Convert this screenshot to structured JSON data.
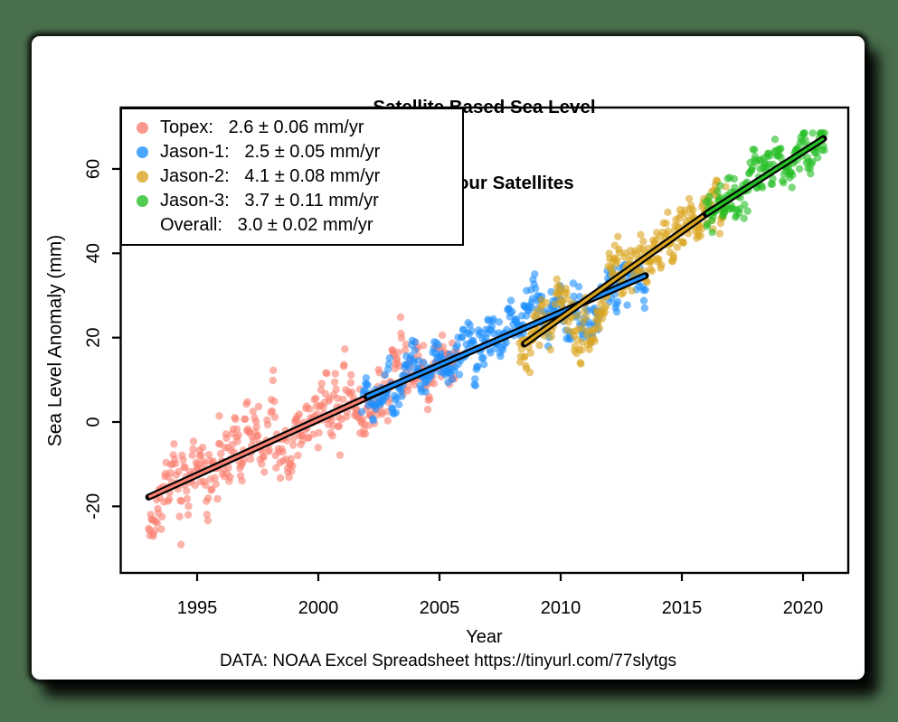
{
  "page": {
    "background_color": "#4a6f4d",
    "card_color": "#ffffff"
  },
  "chart_data": {
    "type": "scatter",
    "title_lines": [
      "Satellite Based Sea Level",
      "From Four Satellites"
    ],
    "xlabel": "Year",
    "ylabel": "Sea Level Anomaly (mm)",
    "caption": "DATA: NOAA Excel Spreadsheet https://tinyurl.com/77slytgs",
    "xlim": [
      1991.8,
      2021.9
    ],
    "ylim": [
      -36,
      75
    ],
    "x_ticks": [
      1995,
      2000,
      2005,
      2010,
      2015,
      2020
    ],
    "y_ticks": [
      -20,
      0,
      20,
      40,
      60
    ],
    "grid": false,
    "legend_position": "topleft",
    "legend": [
      {
        "label": "Topex:   2.6 ± 0.06 mm/yr",
        "color": "#FA8072"
      },
      {
        "label": "Jason-1:   2.5 ± 0.05 mm/yr",
        "color": "#1E90FF"
      },
      {
        "label": "Jason-2:   4.1 ± 0.08 mm/yr",
        "color": "#DAA520"
      },
      {
        "label": "Jason-3:   3.7 ± 0.11 mm/yr",
        "color": "#25BE25"
      },
      {
        "label": "Overall:   3.0 ± 0.02 mm/yr",
        "color": null
      }
    ],
    "overall_trend": {
      "slope_mm_per_yr": 3.0,
      "error": 0.02
    },
    "series": [
      {
        "name": "Topex",
        "color": "#FA8072",
        "slope_mm_per_yr": 2.6,
        "error": 0.06,
        "data_start": 1993.0,
        "data_end": 2005.7,
        "trend_line": {
          "x1": 1993.0,
          "y1": -17.8,
          "x2": 2002.8,
          "y2": 7.9
        },
        "n_points": 440,
        "noise_sd": 4.2,
        "seed": 11,
        "sines": [
          [
            1.6,
            1.0,
            0.3
          ],
          [
            2.0,
            3.2,
            1.1
          ]
        ],
        "dips": [
          [
            1993.2,
            0.4,
            6.0
          ]
        ]
      },
      {
        "name": "Jason-1",
        "color": "#1E90FF",
        "slope_mm_per_yr": 2.5,
        "error": 0.05,
        "data_start": 2001.8,
        "data_end": 2013.5,
        "trend_line": {
          "x1": 2002.0,
          "y1": 6.0,
          "x2": 2013.5,
          "y2": 34.7
        },
        "n_points": 400,
        "noise_sd": 3.0,
        "seed": 23,
        "sines": [
          [
            1.8,
            1.0,
            2.0
          ],
          [
            1.5,
            4.0,
            0.5
          ]
        ],
        "dips": [
          [
            2011.15,
            0.5,
            5.0
          ],
          [
            2010.0,
            0.45,
            -3.0
          ]
        ]
      },
      {
        "name": "Jason-2",
        "color": "#DAA520",
        "slope_mm_per_yr": 4.1,
        "error": 0.08,
        "data_start": 2008.3,
        "data_end": 2016.8,
        "trend_line": {
          "x1": 2008.5,
          "y1": 18.5,
          "x2": 2016.3,
          "y2": 50.5
        },
        "n_points": 300,
        "noise_sd": 3.2,
        "seed": 37,
        "sines": [
          [
            1.8,
            1.0,
            0.8
          ]
        ],
        "dips": [
          [
            2011.15,
            0.5,
            7.5
          ],
          [
            2009.9,
            0.5,
            -3.5
          ]
        ]
      },
      {
        "name": "Jason-3",
        "color": "#25BE25",
        "slope_mm_per_yr": 3.7,
        "error": 0.11,
        "data_start": 2016.0,
        "data_end": 2020.9,
        "trend_line": {
          "x1": 2016.0,
          "y1": 49.3,
          "x2": 2020.85,
          "y2": 67.2
        },
        "n_points": 170,
        "noise_sd": 2.8,
        "seed": 53,
        "sines": [
          [
            1.7,
            1.0,
            1.5
          ],
          [
            1.2,
            2.5,
            0.7
          ]
        ]
      }
    ]
  }
}
